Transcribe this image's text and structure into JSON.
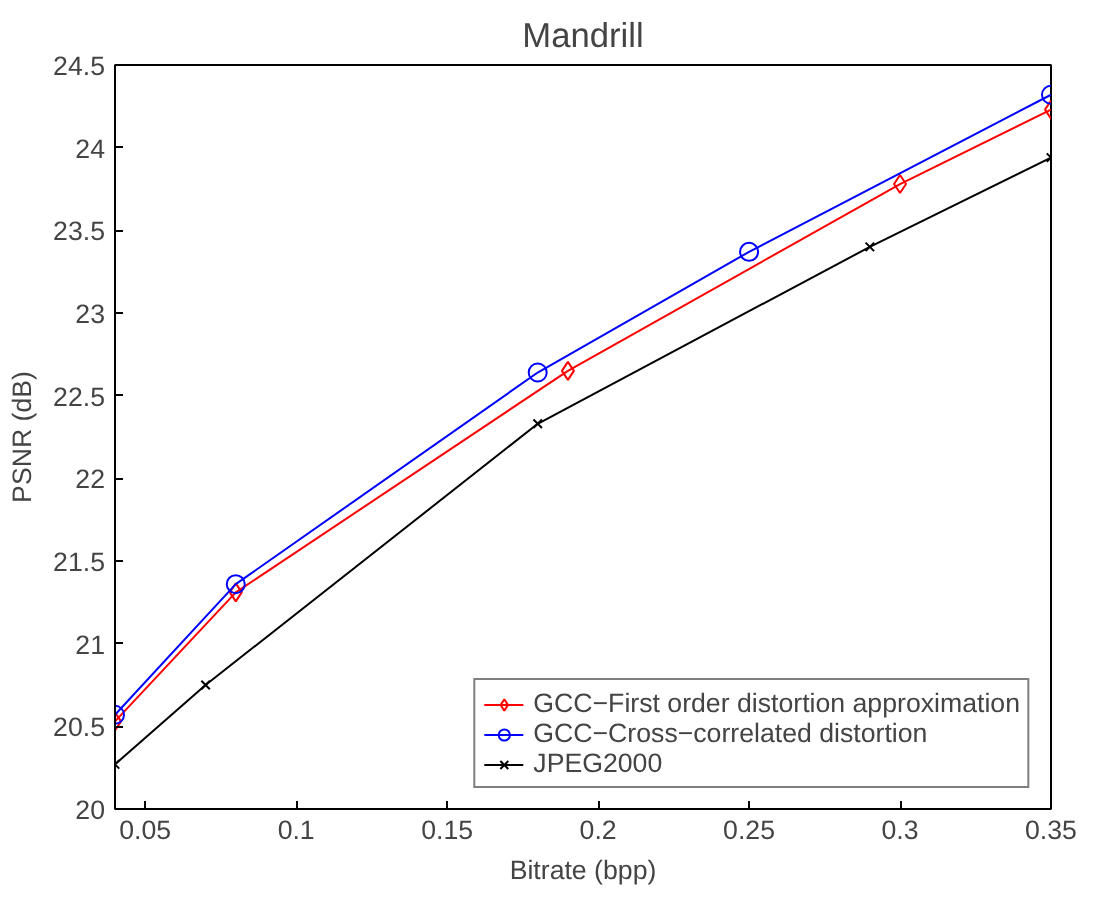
{
  "chart_data": {
    "type": "line",
    "title": "Mandrill",
    "xlabel": "Bitrate (bpp)",
    "ylabel": "PSNR (dB)",
    "xlim": [
      0.04,
      0.35
    ],
    "ylim": [
      20,
      24.5
    ],
    "xticks": [
      0.05,
      0.1,
      0.15,
      0.2,
      0.25,
      0.3,
      0.35
    ],
    "yticks": [
      20,
      20.5,
      21,
      21.5,
      22,
      22.5,
      23,
      23.5,
      24,
      24.5
    ],
    "grid": false,
    "legend": "bottom right",
    "series": [
      {
        "name": "GCC−First order distortion approximation",
        "color": "#ff0000",
        "marker": "diamond",
        "x": [
          0.04,
          0.08,
          0.19,
          0.3,
          0.35
        ],
        "values": [
          20.53,
          21.31,
          22.65,
          23.78,
          24.23
        ]
      },
      {
        "name": "GCC−Cross−correlated distortion",
        "color": "#0000ff",
        "marker": "circle",
        "x": [
          0.04,
          0.08,
          0.18,
          0.25,
          0.35
        ],
        "values": [
          20.57,
          21.36,
          22.64,
          23.37,
          24.32
        ]
      },
      {
        "name": "JPEG2000",
        "color": "#000000",
        "marker": "cross",
        "x": [
          0.04,
          0.07,
          0.18,
          0.29,
          0.35
        ],
        "values": [
          20.27,
          20.75,
          22.33,
          23.4,
          23.94
        ]
      }
    ]
  }
}
